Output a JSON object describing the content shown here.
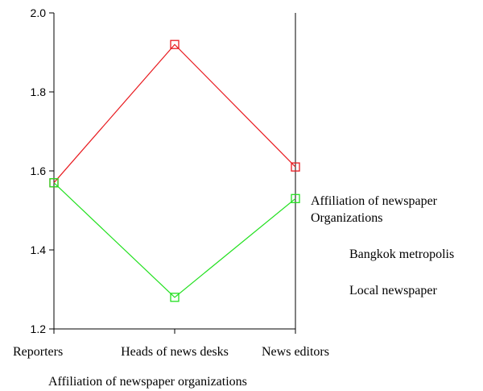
{
  "chart_data": {
    "type": "line",
    "title": "",
    "xlabel": "Affiliation of newspaper organizations",
    "ylabel": "",
    "categories": [
      "Reporters",
      "Heads of news desks",
      "News editors"
    ],
    "ylim": [
      1.2,
      2.0
    ],
    "yticks": [
      "2.0",
      "1.8",
      "1.6",
      "1.4",
      "1.2"
    ],
    "grid": false,
    "legend": {
      "title_lines": [
        "Affiliation of newspaper",
        "Organizations"
      ],
      "placement": "right",
      "entries": [
        "Bangkok metropolis",
        "Local newspaper"
      ]
    },
    "series": [
      {
        "name": "Bangkok metropolis",
        "color": "#e8191e",
        "marker": "square",
        "values": [
          1.57,
          1.92,
          1.61
        ]
      },
      {
        "name": "Local newspaper",
        "color": "#22e01f",
        "marker": "square",
        "values": [
          1.57,
          1.28,
          1.53
        ]
      }
    ]
  }
}
